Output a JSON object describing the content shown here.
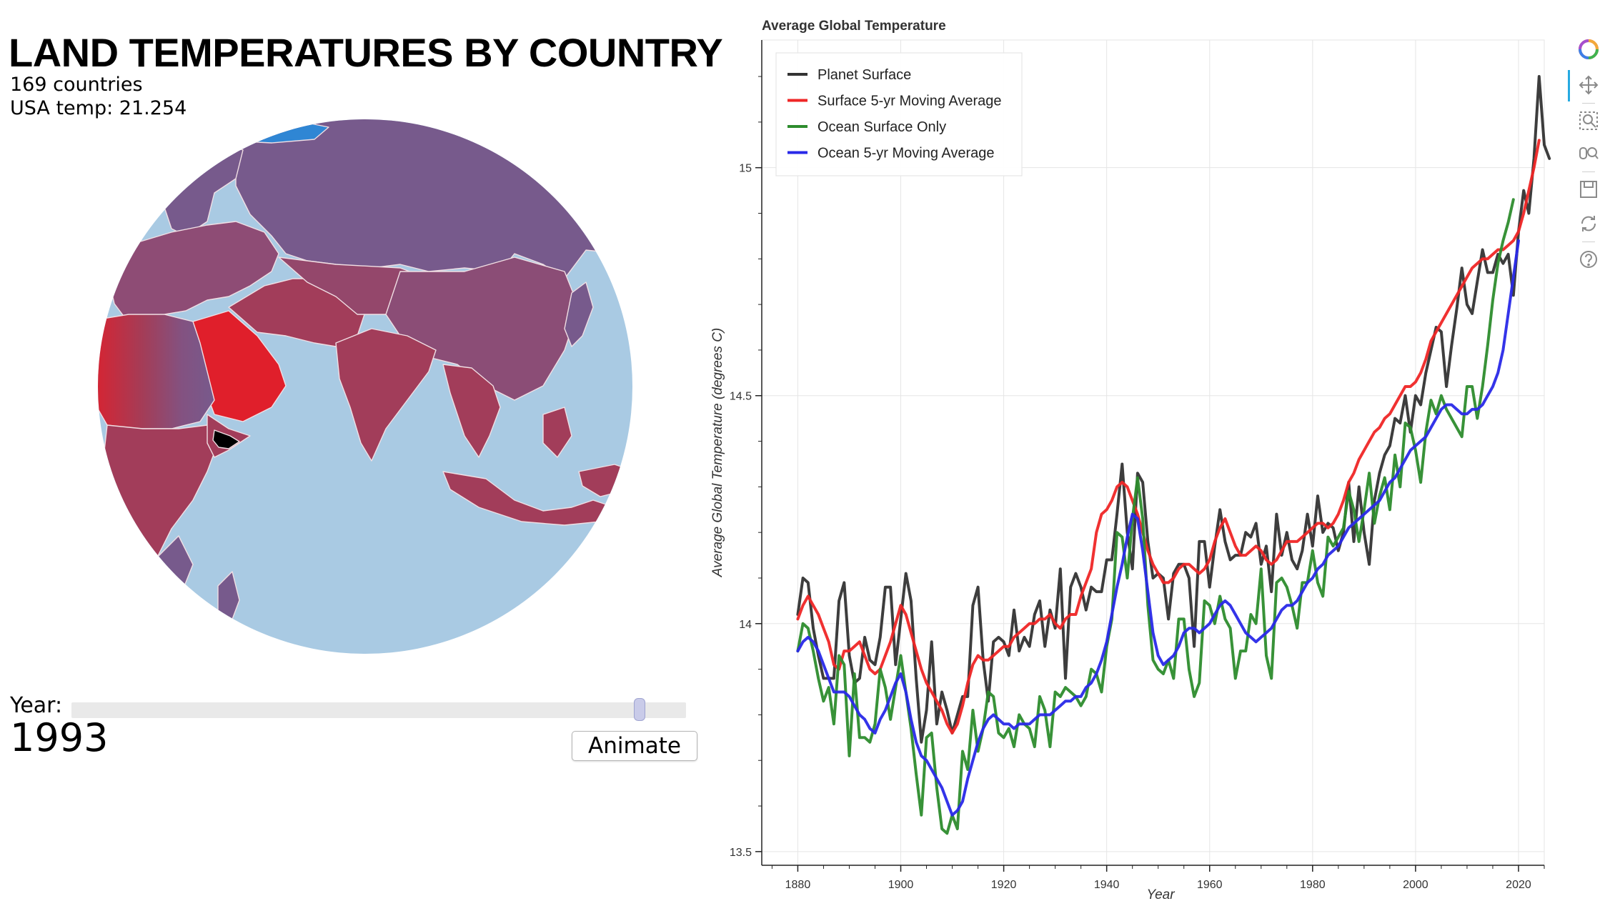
{
  "header": {
    "title": "LAND TEMPERATURES BY COUNTRY",
    "countries_text": "169 countries",
    "usa_temp_text": "USA temp: 21.254"
  },
  "controls": {
    "year_label": "Year:",
    "year_value": "1993",
    "year_min": 1750,
    "year_max": 2013,
    "animate_label": "Animate"
  },
  "colors": {
    "ocean": "#a9cae3",
    "hot": "#e01f2b",
    "cool": "#775a8c",
    "highlight": "#000000",
    "ice": "#2f86d4"
  },
  "toolbar": {
    "icons": [
      "bokeh-logo-icon",
      "pan-icon",
      "box-zoom-icon",
      "wheel-zoom-icon",
      "save-icon",
      "reset-icon",
      "help-icon"
    ]
  },
  "chart_data": {
    "type": "line",
    "title": "Average Global Temperature",
    "xlabel": "Year",
    "ylabel": "Average Global Temperature (degrees C)",
    "xlim": [
      1873,
      2025
    ],
    "ylim": [
      13.47,
      15.28
    ],
    "x_ticks": [
      "1880",
      "1900",
      "1920",
      "1940",
      "1960",
      "1980",
      "2000",
      "2020"
    ],
    "y_ticks": [
      "13.5",
      "14",
      "14.5",
      "15"
    ],
    "grid": true,
    "legend_position": "top-left",
    "x_start": 1880,
    "series": [
      {
        "name": "Planet Surface",
        "color": "#333333",
        "values": [
          14.02,
          14.1,
          14.09,
          13.99,
          13.93,
          13.88,
          13.88,
          13.88,
          14.05,
          14.09,
          13.93,
          13.87,
          13.88,
          13.97,
          13.92,
          13.91,
          13.97,
          14.08,
          14.08,
          13.91,
          14.01,
          14.11,
          14.05,
          13.88,
          13.74,
          13.81,
          13.96,
          13.78,
          13.85,
          13.81,
          13.76,
          13.8,
          13.84,
          13.84,
          14.04,
          14.08,
          13.92,
          13.83,
          13.96,
          13.97,
          13.96,
          13.93,
          14.03,
          13.94,
          13.97,
          13.95,
          14.02,
          14.05,
          13.95,
          14.03,
          13.99,
          14.12,
          13.88,
          14.08,
          14.11,
          14.08,
          14.03,
          14.08,
          14.07,
          14.07,
          14.14,
          14.14,
          14.24,
          14.35,
          14.2,
          14.12,
          14.33,
          14.31,
          14.18,
          14.1,
          14.11,
          14.1,
          14.01,
          14.11,
          14.13,
          14.13,
          14.1,
          13.95,
          14.18,
          14.18,
          14.08,
          14.17,
          14.25,
          14.18,
          14.14,
          14.15,
          14.15,
          14.2,
          14.19,
          14.22,
          14.13,
          14.17,
          14.07,
          14.24,
          14.15,
          14.2,
          14.14,
          14.12,
          14.16,
          14.24,
          14.17,
          14.28,
          14.2,
          14.22,
          14.21,
          14.16,
          14.2,
          14.31,
          14.18,
          14.3,
          14.2,
          14.13,
          14.27,
          14.33,
          14.37,
          14.39,
          14.45,
          14.44,
          14.5,
          14.42,
          14.5,
          14.48,
          14.55,
          14.6,
          14.65,
          14.64,
          14.52,
          14.61,
          14.69,
          14.78,
          14.7,
          14.68,
          14.75,
          14.82,
          14.77,
          14.77,
          14.81,
          14.79,
          14.81,
          14.72,
          14.86,
          14.95,
          14.9,
          15.02,
          15.2,
          15.05,
          15.02
        ],
        "measured_from_image": true
      },
      {
        "name": "Surface 5-yr Moving Average",
        "color": "#ef2626",
        "values": [
          14.01,
          14.04,
          14.06,
          14.04,
          14.02,
          13.99,
          13.96,
          13.91,
          13.9,
          13.94,
          13.94,
          13.95,
          13.96,
          13.93,
          13.9,
          13.89,
          13.9,
          13.93,
          13.96,
          14.0,
          14.04,
          14.02,
          13.98,
          13.94,
          13.9,
          13.87,
          13.85,
          13.83,
          13.81,
          13.78,
          13.76,
          13.78,
          13.82,
          13.87,
          13.91,
          13.93,
          13.92,
          13.92,
          13.93,
          13.94,
          13.95,
          13.95,
          13.97,
          13.98,
          13.99,
          14.0,
          14.0,
          14.01,
          14.01,
          14.02,
          14.0,
          13.99,
          14.01,
          14.02,
          14.02,
          14.06,
          14.09,
          14.12,
          14.2,
          14.24,
          14.25,
          14.27,
          14.3,
          14.31,
          14.3,
          14.27,
          14.24,
          14.2,
          14.16,
          14.13,
          14.11,
          14.09,
          14.09,
          14.1,
          14.12,
          14.13,
          14.13,
          14.12,
          14.11,
          14.12,
          14.14,
          14.18,
          14.21,
          14.23,
          14.2,
          14.17,
          14.15,
          14.15,
          14.16,
          14.17,
          14.16,
          14.14,
          14.13,
          14.14,
          14.16,
          14.18,
          14.18,
          14.18,
          14.19,
          14.2,
          14.21,
          14.22,
          14.22,
          14.21,
          14.22,
          14.24,
          14.27,
          14.31,
          14.33,
          14.36,
          14.38,
          14.4,
          14.42,
          14.43,
          14.45,
          14.46,
          14.48,
          14.5,
          14.52,
          14.52,
          14.53,
          14.55,
          14.58,
          14.62,
          14.64,
          14.66,
          14.68,
          14.7,
          14.72,
          14.74,
          14.76,
          14.78,
          14.79,
          14.8,
          14.8,
          14.81,
          14.82,
          14.82,
          14.83,
          14.84,
          14.86,
          14.9,
          14.95,
          15.0,
          15.06
        ],
        "measured_from_image": true
      },
      {
        "name": "Ocean Surface Only",
        "color": "#2d8c2d",
        "values": [
          13.94,
          14.0,
          13.99,
          13.94,
          13.88,
          13.83,
          13.86,
          13.78,
          13.93,
          13.91,
          13.71,
          13.89,
          13.75,
          13.75,
          13.74,
          13.78,
          13.9,
          13.86,
          13.79,
          13.86,
          13.93,
          13.85,
          13.77,
          13.67,
          13.58,
          13.75,
          13.76,
          13.64,
          13.55,
          13.54,
          13.58,
          13.55,
          13.72,
          13.68,
          13.81,
          13.72,
          13.77,
          13.85,
          13.84,
          13.76,
          13.75,
          13.77,
          13.73,
          13.8,
          13.78,
          13.77,
          13.73,
          13.84,
          13.81,
          13.73,
          13.85,
          13.84,
          13.86,
          13.85,
          13.84,
          13.82,
          13.84,
          13.9,
          13.89,
          13.85,
          13.95,
          14.01,
          14.2,
          14.19,
          14.1,
          14.23,
          14.32,
          14.23,
          14.04,
          13.92,
          13.9,
          13.89,
          13.92,
          13.88,
          14.01,
          14.01,
          13.9,
          13.84,
          13.87,
          14.05,
          14.04,
          14.0,
          14.06,
          14.01,
          13.99,
          13.88,
          13.94,
          13.94,
          14.02,
          14.0,
          14.12,
          13.93,
          13.88,
          14.09,
          14.1,
          14.08,
          14.04,
          13.99,
          14.09,
          14.09,
          14.16,
          14.09,
          14.06,
          14.19,
          14.17,
          14.19,
          14.21,
          14.29,
          14.25,
          14.18,
          14.25,
          14.33,
          14.22,
          14.28,
          14.32,
          14.25,
          14.37,
          14.3,
          14.44,
          14.43,
          14.38,
          14.31,
          14.42,
          14.49,
          14.46,
          14.5,
          14.47,
          14.45,
          14.43,
          14.41,
          14.52,
          14.52,
          14.45,
          14.52,
          14.61,
          14.71,
          14.79,
          14.84,
          14.88,
          14.93
        ],
        "measured_from_image": true
      },
      {
        "name": "Ocean 5-yr Moving Average",
        "color": "#2929e8",
        "values": [
          13.94,
          13.96,
          13.97,
          13.96,
          13.94,
          13.91,
          13.88,
          13.85,
          13.85,
          13.85,
          13.84,
          13.82,
          13.8,
          13.79,
          13.77,
          13.76,
          13.79,
          13.81,
          13.84,
          13.87,
          13.89,
          13.85,
          13.79,
          13.74,
          13.71,
          13.7,
          13.68,
          13.66,
          13.64,
          13.61,
          13.58,
          13.59,
          13.61,
          13.66,
          13.7,
          13.74,
          13.77,
          13.79,
          13.8,
          13.79,
          13.78,
          13.78,
          13.77,
          13.78,
          13.78,
          13.78,
          13.79,
          13.8,
          13.8,
          13.8,
          13.81,
          13.82,
          13.83,
          13.83,
          13.84,
          13.84,
          13.86,
          13.87,
          13.89,
          13.92,
          13.96,
          14.02,
          14.08,
          14.13,
          14.19,
          14.24,
          14.23,
          14.16,
          14.07,
          13.98,
          13.93,
          13.91,
          13.92,
          13.93,
          13.95,
          13.98,
          13.99,
          13.99,
          13.98,
          13.99,
          14.0,
          14.02,
          14.04,
          14.05,
          14.04,
          14.02,
          14.0,
          13.98,
          13.97,
          13.96,
          13.97,
          13.98,
          13.99,
          14.01,
          14.03,
          14.04,
          14.04,
          14.05,
          14.07,
          14.09,
          14.1,
          14.12,
          14.13,
          14.15,
          14.16,
          14.17,
          14.19,
          14.21,
          14.22,
          14.23,
          14.24,
          14.25,
          14.26,
          14.27,
          14.29,
          14.31,
          14.32,
          14.34,
          14.36,
          14.38,
          14.39,
          14.4,
          14.41,
          14.43,
          14.45,
          14.47,
          14.48,
          14.48,
          14.47,
          14.46,
          14.46,
          14.47,
          14.47,
          14.48,
          14.5,
          14.52,
          14.55,
          14.6,
          14.68,
          14.76,
          14.84
        ],
        "measured_from_image": true
      }
    ]
  }
}
